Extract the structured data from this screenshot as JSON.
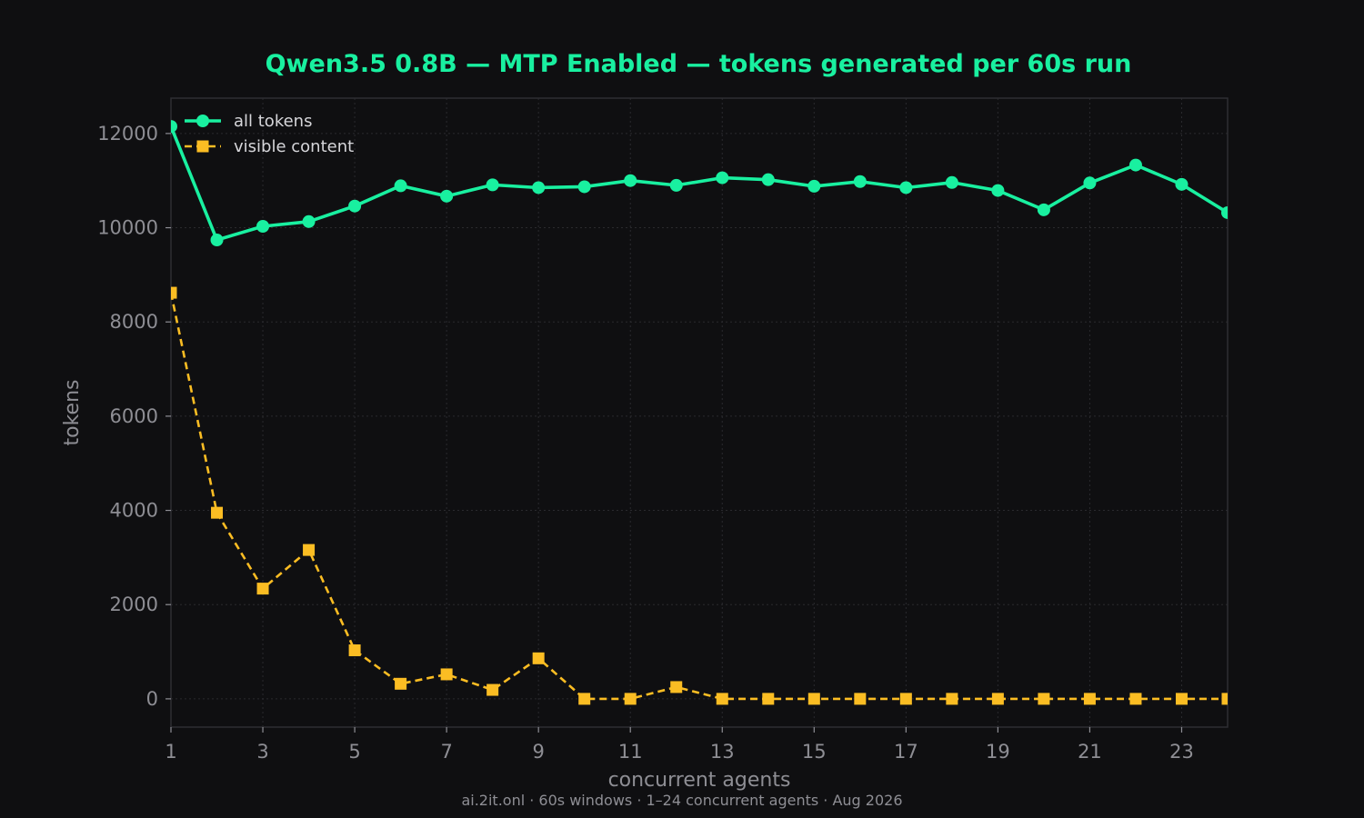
{
  "colors": {
    "background": "#0f0f11",
    "plot_border": "#2e2e33",
    "grid": "#2a2a2e",
    "title": "#19f0a0",
    "tick_text": "#8e8e94",
    "axis_text": "#8e8e94",
    "legend_text": "#d6d6da",
    "footer_text": "#8e8e94"
  },
  "chart_data": {
    "type": "line",
    "title": "Qwen3.5 0.8B — MTP Enabled — tokens generated per 60s run",
    "xlabel": "concurrent agents",
    "ylabel": "tokens",
    "x": [
      1,
      2,
      3,
      4,
      5,
      6,
      7,
      8,
      9,
      10,
      11,
      12,
      13,
      14,
      15,
      16,
      17,
      18,
      19,
      20,
      21,
      22,
      23,
      24
    ],
    "xlim": [
      1,
      24
    ],
    "ylim": [
      -600,
      12750
    ],
    "xticks": [
      "1",
      "3",
      "5",
      "7",
      "9",
      "11",
      "13",
      "15",
      "17",
      "19",
      "21",
      "23"
    ],
    "yticks": [
      "0",
      "2000",
      "4000",
      "6000",
      "8000",
      "10000",
      "12000"
    ],
    "grid": true,
    "legend_position": "top-left",
    "series": [
      {
        "name": "all tokens",
        "color": "#19f0a0",
        "line_style": "solid",
        "marker": "circle",
        "values": [
          12150,
          9740,
          10030,
          10130,
          10460,
          10890,
          10670,
          10910,
          10850,
          10870,
          11000,
          10900,
          11060,
          11020,
          10880,
          10980,
          10850,
          10960,
          10790,
          10380,
          10950,
          11330,
          10920,
          10320
        ]
      },
      {
        "name": "visible content",
        "color": "#fbbd23",
        "line_style": "dashed",
        "marker": "square",
        "values": [
          8620,
          3950,
          2340,
          3160,
          1030,
          320,
          520,
          190,
          860,
          0,
          0,
          250,
          0,
          0,
          0,
          0,
          0,
          0,
          0,
          0,
          0,
          0,
          0,
          0
        ]
      }
    ]
  },
  "footer": "ai.2it.onl · 60s windows · 1–24 concurrent agents · Aug 2026"
}
